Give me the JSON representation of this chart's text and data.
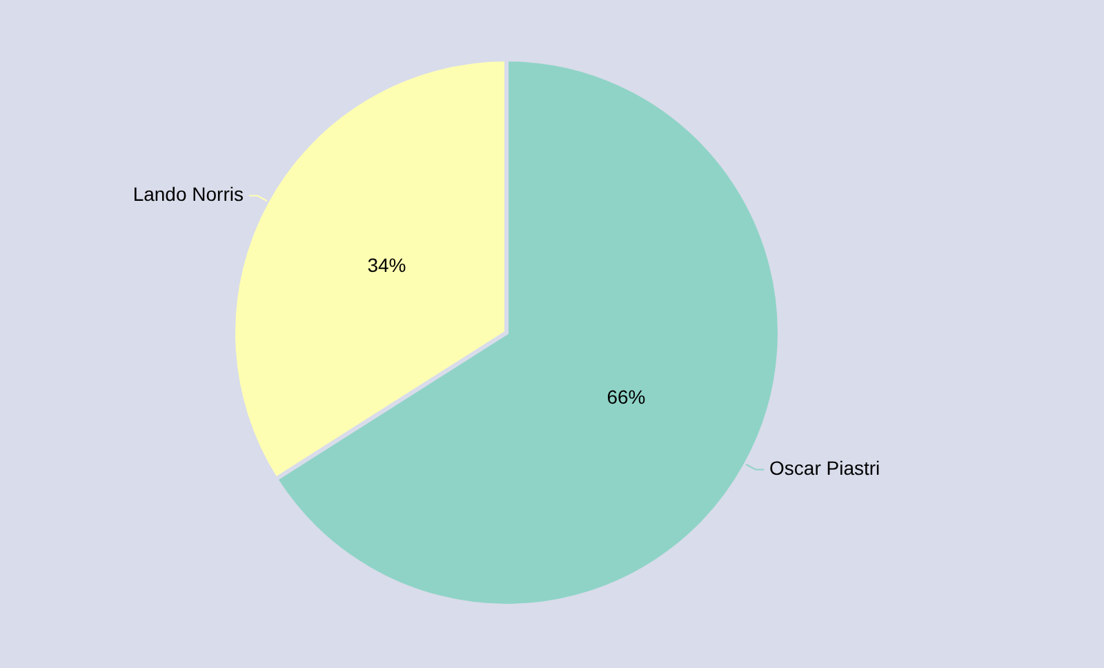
{
  "chart_data": {
    "type": "pie",
    "categories": [
      "Oscar Piastri",
      "Lando Norris"
    ],
    "values": [
      66,
      34
    ],
    "colors": [
      "#8fd3c7",
      "#fefeb3"
    ],
    "value_labels": [
      "66%",
      "34%"
    ]
  }
}
